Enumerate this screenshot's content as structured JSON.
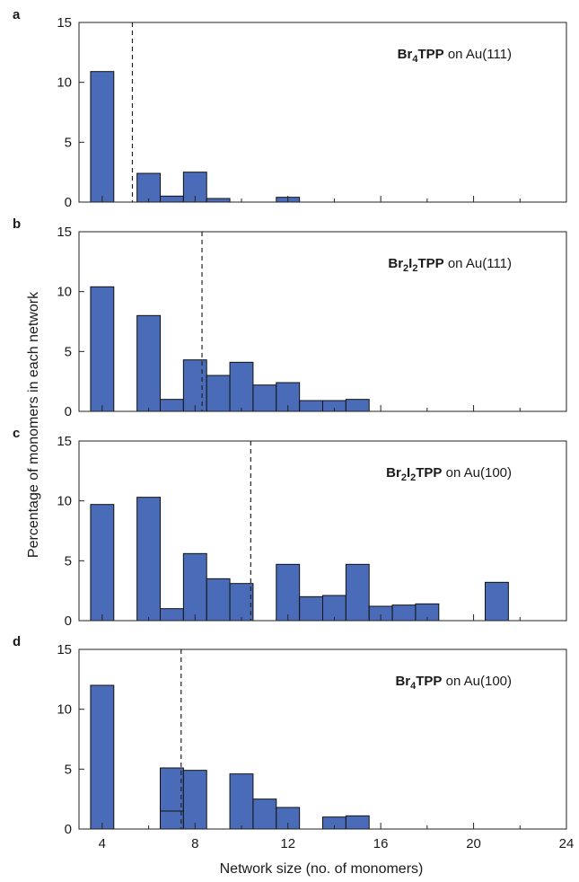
{
  "chart_data": {
    "type": "bar",
    "xlabel": "Network size (no. of monomers)",
    "ylabel": "Percentage of monomers in each network",
    "xlim": [
      3,
      24
    ],
    "ylim": [
      0,
      15
    ],
    "x_ticks": [
      "4",
      "8",
      "12",
      "16",
      "20",
      "24"
    ],
    "y_ticks": [
      "0",
      "5",
      "10",
      "15"
    ],
    "bar_color": "#4a6cb8",
    "panels": [
      {
        "letter": "a",
        "label_parts": [
          {
            "t": "Br",
            "s": "bold"
          },
          {
            "t": "4",
            "s": "boldsub"
          },
          {
            "t": "TPP",
            "s": "bold"
          },
          {
            "t": " on Au(111)",
            "s": "normal"
          }
        ],
        "mean": 5.3,
        "bars": [
          [
            4,
            10.9
          ],
          [
            6,
            2.4
          ],
          [
            7,
            0.5
          ],
          [
            8,
            2.5
          ],
          [
            9,
            0.3
          ],
          [
            12,
            0.4
          ]
        ]
      },
      {
        "letter": "b",
        "label_parts": [
          {
            "t": "Br",
            "s": "bold"
          },
          {
            "t": "2",
            "s": "boldsub"
          },
          {
            "t": "I",
            "s": "bold"
          },
          {
            "t": "2",
            "s": "boldsub"
          },
          {
            "t": "TPP",
            "s": "bold"
          },
          {
            "t": " on Au(111)",
            "s": "normal"
          }
        ],
        "mean": 8.3,
        "bars": [
          [
            4,
            10.4
          ],
          [
            6,
            8.0
          ],
          [
            7,
            1.0
          ],
          [
            8,
            4.3
          ],
          [
            9,
            3.0
          ],
          [
            10,
            4.1
          ],
          [
            11,
            2.2
          ],
          [
            12,
            2.4
          ],
          [
            13,
            0.9
          ],
          [
            14,
            0.9
          ],
          [
            15,
            1.0
          ]
        ]
      },
      {
        "letter": "c",
        "label_parts": [
          {
            "t": "Br",
            "s": "bold"
          },
          {
            "t": "2",
            "s": "boldsub"
          },
          {
            "t": "I",
            "s": "bold"
          },
          {
            "t": "2",
            "s": "boldsub"
          },
          {
            "t": "TPP",
            "s": "bold"
          },
          {
            "t": " on Au(100)",
            "s": "normal"
          }
        ],
        "mean": 10.4,
        "bars": [
          [
            4,
            9.7
          ],
          [
            6,
            10.3
          ],
          [
            7,
            1.0
          ],
          [
            8,
            5.6
          ],
          [
            9,
            3.5
          ],
          [
            10,
            3.1
          ],
          [
            12,
            4.7
          ],
          [
            13,
            2.0
          ],
          [
            14,
            2.1
          ],
          [
            15,
            4.7
          ],
          [
            16,
            1.2
          ],
          [
            17,
            1.3
          ],
          [
            18,
            1.4
          ],
          [
            21,
            3.2
          ]
        ]
      },
      {
        "letter": "d",
        "label_parts": [
          {
            "t": "Br",
            "s": "bold"
          },
          {
            "t": "4",
            "s": "boldsub"
          },
          {
            "t": "TPP",
            "s": "bold"
          },
          {
            "t": " on Au(100)",
            "s": "normal"
          }
        ],
        "mean": 7.4,
        "bars": [
          [
            4,
            12.0
          ],
          [
            7,
            5.1
          ],
          [
            7,
            1.5
          ],
          [
            8,
            4.9
          ],
          [
            10,
            4.6
          ],
          [
            11,
            2.5
          ],
          [
            12,
            1.8
          ],
          [
            14,
            1.0
          ],
          [
            15,
            1.1
          ]
        ]
      }
    ]
  }
}
